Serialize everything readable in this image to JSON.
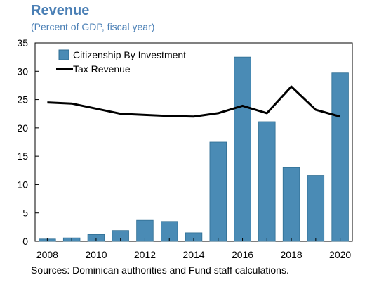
{
  "title": "Revenue",
  "subtitle": "(Percent of GDP, fiscal year)",
  "source": "Sources: Dominican authorities and Fund staff calculations.",
  "colors": {
    "title": "#4a7fb5",
    "bar": "#4a8bb5",
    "bar_stroke": "#2f6e93",
    "line": "#000000",
    "axis": "#000000"
  },
  "chart_data": {
    "type": "bar",
    "x": [
      2008,
      2009,
      2010,
      2011,
      2012,
      2013,
      2014,
      2015,
      2016,
      2017,
      2018,
      2019,
      2020
    ],
    "x_tick_labels": [
      "2008",
      "2010",
      "2012",
      "2014",
      "2016",
      "2018",
      "2020"
    ],
    "y_tick_labels": [
      "0",
      "5",
      "10",
      "15",
      "20",
      "25",
      "30",
      "35"
    ],
    "ylim": [
      0,
      35
    ],
    "grid": false,
    "legend_position": "top-left",
    "series": [
      {
        "name": "Citizenship By Investment",
        "type": "bar",
        "values": [
          0.4,
          0.6,
          1.2,
          1.9,
          3.7,
          3.5,
          1.5,
          17.5,
          32.5,
          21.1,
          13.0,
          11.6,
          29.7
        ]
      },
      {
        "name": "Tax Revenue",
        "type": "line",
        "values": [
          24.5,
          24.3,
          23.4,
          22.5,
          22.3,
          22.1,
          22.0,
          22.6,
          23.9,
          22.6,
          27.3,
          23.2,
          22.0
        ]
      }
    ]
  }
}
